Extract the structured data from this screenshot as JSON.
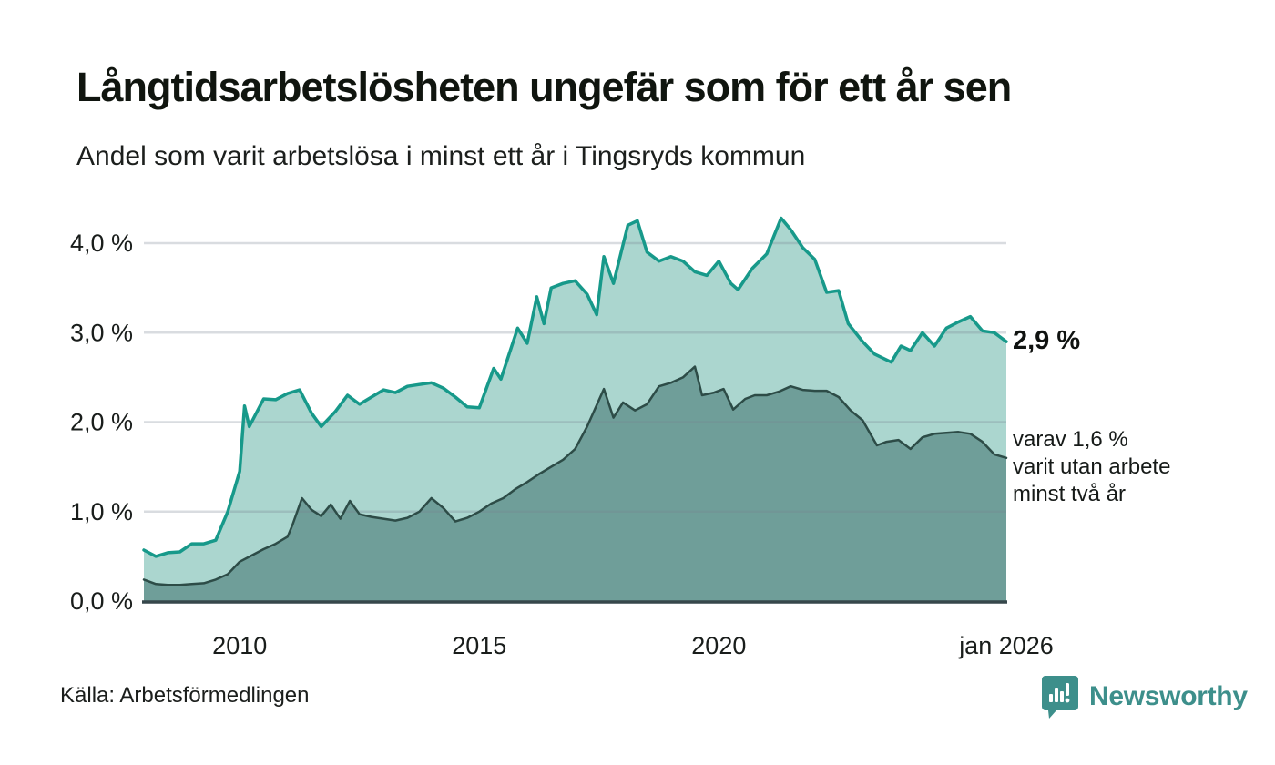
{
  "header": {
    "title": "Långtidsarbetslösheten ungefär som för ett år sen",
    "subtitle": "Andel som varit arbetslösa i minst ett år i Tingsryds kommun"
  },
  "chart_data": {
    "type": "area",
    "title": "Långtidsarbetslösheten ungefär som för ett år sen",
    "subtitle": "Andel som varit arbetslösa i minst ett år i Tingsryds kommun",
    "unit": "percent",
    "x_domain": [
      2008.0,
      2026.0
    ],
    "ylim": [
      0,
      4.5
    ],
    "grid": true,
    "legend_position": "line-end-annotations",
    "x_ticks": [
      {
        "pos": 2010,
        "label": "2010"
      },
      {
        "pos": 2015,
        "label": "2015"
      },
      {
        "pos": 2020,
        "label": "2020"
      },
      {
        "pos": 2026,
        "label": "jan 2026"
      }
    ],
    "y_ticks": [
      {
        "value": 0,
        "label": "0,0 %"
      },
      {
        "value": 1,
        "label": "1,0 %"
      },
      {
        "value": 2,
        "label": "2,0 %"
      },
      {
        "value": 3,
        "label": "3,0 %"
      },
      {
        "value": 4,
        "label": "4,0 %"
      }
    ],
    "series": [
      {
        "name": "Arbetslösa minst ett år",
        "line_color": "#17998a",
        "fill_color": "#abd6cf",
        "line_width": 3.5,
        "latest_value": 2.9,
        "points": [
          [
            2008.0,
            0.57
          ],
          [
            2008.25,
            0.5
          ],
          [
            2008.5,
            0.54
          ],
          [
            2008.75,
            0.55
          ],
          [
            2009.0,
            0.64
          ],
          [
            2009.25,
            0.64
          ],
          [
            2009.5,
            0.68
          ],
          [
            2009.75,
            1.0
          ],
          [
            2010.0,
            1.45
          ],
          [
            2010.1,
            2.18
          ],
          [
            2010.2,
            1.95
          ],
          [
            2010.5,
            2.26
          ],
          [
            2010.75,
            2.25
          ],
          [
            2011.0,
            2.32
          ],
          [
            2011.25,
            2.36
          ],
          [
            2011.5,
            2.1
          ],
          [
            2011.7,
            1.95
          ],
          [
            2012.0,
            2.12
          ],
          [
            2012.25,
            2.3
          ],
          [
            2012.5,
            2.2
          ],
          [
            2012.75,
            2.28
          ],
          [
            2013.0,
            2.36
          ],
          [
            2013.25,
            2.33
          ],
          [
            2013.5,
            2.4
          ],
          [
            2013.75,
            2.42
          ],
          [
            2014.0,
            2.44
          ],
          [
            2014.25,
            2.38
          ],
          [
            2014.5,
            2.28
          ],
          [
            2014.75,
            2.17
          ],
          [
            2015.0,
            2.16
          ],
          [
            2015.3,
            2.6
          ],
          [
            2015.45,
            2.48
          ],
          [
            2015.8,
            3.05
          ],
          [
            2016.0,
            2.88
          ],
          [
            2016.2,
            3.4
          ],
          [
            2016.35,
            3.1
          ],
          [
            2016.5,
            3.5
          ],
          [
            2016.75,
            3.55
          ],
          [
            2017.0,
            3.58
          ],
          [
            2017.25,
            3.43
          ],
          [
            2017.45,
            3.2
          ],
          [
            2017.6,
            3.85
          ],
          [
            2017.8,
            3.55
          ],
          [
            2018.1,
            4.2
          ],
          [
            2018.3,
            4.25
          ],
          [
            2018.5,
            3.9
          ],
          [
            2018.75,
            3.8
          ],
          [
            2019.0,
            3.85
          ],
          [
            2019.25,
            3.8
          ],
          [
            2019.5,
            3.68
          ],
          [
            2019.75,
            3.64
          ],
          [
            2020.0,
            3.8
          ],
          [
            2020.25,
            3.55
          ],
          [
            2020.4,
            3.48
          ],
          [
            2020.7,
            3.72
          ],
          [
            2021.0,
            3.88
          ],
          [
            2021.3,
            4.28
          ],
          [
            2021.5,
            4.15
          ],
          [
            2021.75,
            3.95
          ],
          [
            2022.0,
            3.82
          ],
          [
            2022.25,
            3.45
          ],
          [
            2022.5,
            3.47
          ],
          [
            2022.7,
            3.1
          ],
          [
            2023.0,
            2.9
          ],
          [
            2023.25,
            2.76
          ],
          [
            2023.6,
            2.67
          ],
          [
            2023.8,
            2.85
          ],
          [
            2024.0,
            2.8
          ],
          [
            2024.25,
            3.0
          ],
          [
            2024.5,
            2.85
          ],
          [
            2024.75,
            3.05
          ],
          [
            2025.0,
            3.12
          ],
          [
            2025.25,
            3.18
          ],
          [
            2025.5,
            3.02
          ],
          [
            2025.75,
            3.0
          ],
          [
            2026.0,
            2.9
          ]
        ]
      },
      {
        "name": "Arbetslösa minst två år",
        "line_color": "#2d4c47",
        "fill_color": "#6f9e99",
        "line_width": 2.5,
        "latest_value": 1.6,
        "points": [
          [
            2008.0,
            0.24
          ],
          [
            2008.25,
            0.19
          ],
          [
            2008.5,
            0.18
          ],
          [
            2008.75,
            0.18
          ],
          [
            2009.0,
            0.19
          ],
          [
            2009.25,
            0.2
          ],
          [
            2009.5,
            0.24
          ],
          [
            2009.75,
            0.3
          ],
          [
            2010.0,
            0.44
          ],
          [
            2010.25,
            0.51
          ],
          [
            2010.5,
            0.58
          ],
          [
            2010.75,
            0.64
          ],
          [
            2011.0,
            0.72
          ],
          [
            2011.1,
            0.85
          ],
          [
            2011.3,
            1.15
          ],
          [
            2011.5,
            1.02
          ],
          [
            2011.7,
            0.95
          ],
          [
            2011.9,
            1.08
          ],
          [
            2012.1,
            0.92
          ],
          [
            2012.3,
            1.12
          ],
          [
            2012.5,
            0.97
          ],
          [
            2012.75,
            0.94
          ],
          [
            2013.0,
            0.92
          ],
          [
            2013.25,
            0.9
          ],
          [
            2013.5,
            0.93
          ],
          [
            2013.75,
            1.0
          ],
          [
            2014.0,
            1.15
          ],
          [
            2014.25,
            1.04
          ],
          [
            2014.5,
            0.89
          ],
          [
            2014.75,
            0.93
          ],
          [
            2015.0,
            1.0
          ],
          [
            2015.25,
            1.09
          ],
          [
            2015.5,
            1.15
          ],
          [
            2015.75,
            1.25
          ],
          [
            2016.0,
            1.33
          ],
          [
            2016.25,
            1.42
          ],
          [
            2016.5,
            1.5
          ],
          [
            2016.75,
            1.58
          ],
          [
            2017.0,
            1.7
          ],
          [
            2017.25,
            1.95
          ],
          [
            2017.6,
            2.37
          ],
          [
            2017.8,
            2.05
          ],
          [
            2018.0,
            2.22
          ],
          [
            2018.25,
            2.13
          ],
          [
            2018.5,
            2.2
          ],
          [
            2018.75,
            2.4
          ],
          [
            2019.0,
            2.44
          ],
          [
            2019.25,
            2.5
          ],
          [
            2019.5,
            2.62
          ],
          [
            2019.65,
            2.3
          ],
          [
            2019.9,
            2.33
          ],
          [
            2020.1,
            2.37
          ],
          [
            2020.3,
            2.14
          ],
          [
            2020.55,
            2.26
          ],
          [
            2020.75,
            2.3
          ],
          [
            2021.0,
            2.3
          ],
          [
            2021.25,
            2.34
          ],
          [
            2021.5,
            2.4
          ],
          [
            2021.75,
            2.36
          ],
          [
            2022.0,
            2.35
          ],
          [
            2022.25,
            2.35
          ],
          [
            2022.5,
            2.28
          ],
          [
            2022.75,
            2.13
          ],
          [
            2023.0,
            2.02
          ],
          [
            2023.3,
            1.74
          ],
          [
            2023.5,
            1.78
          ],
          [
            2023.75,
            1.8
          ],
          [
            2024.0,
            1.7
          ],
          [
            2024.25,
            1.83
          ],
          [
            2024.5,
            1.87
          ],
          [
            2024.75,
            1.88
          ],
          [
            2025.0,
            1.89
          ],
          [
            2025.25,
            1.87
          ],
          [
            2025.5,
            1.78
          ],
          [
            2025.75,
            1.64
          ],
          [
            2026.0,
            1.6
          ]
        ]
      }
    ],
    "colors": {
      "gridline": "rgba(120,130,142,0.28)",
      "baseline": "#36474b",
      "tick_text": "#191d1b"
    }
  },
  "annotations": {
    "latest_value": "2,9 %",
    "secondary": {
      "line1": "varav 1,6 %",
      "line2": "varit utan arbete",
      "line3": "minst två år"
    }
  },
  "footer": {
    "source": "Källa: Arbetsförmedlingen",
    "brand": "Newsworthy",
    "brand_color": "#3d8f8b"
  }
}
